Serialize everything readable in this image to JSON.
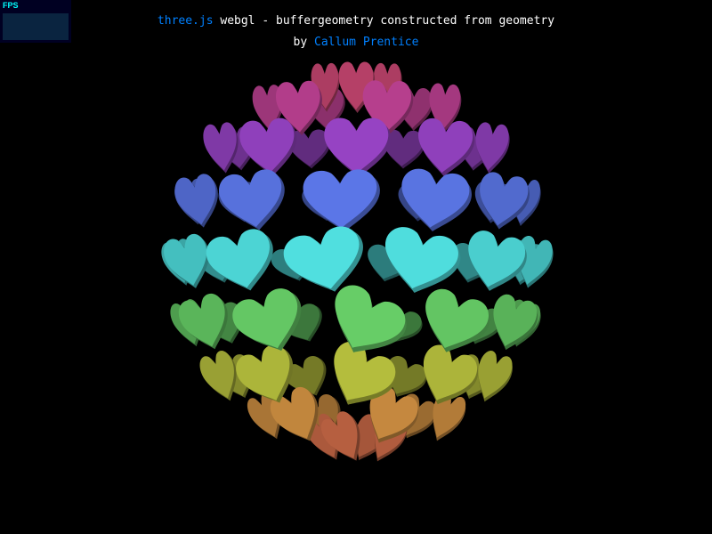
{
  "info": {
    "link_label": "three.js",
    "description": " webgl - buffergeometry constructed from geometry",
    "by_prefix": "by ",
    "author_label": "Callum Prentice"
  },
  "stats": {
    "mode_label": "FPS"
  },
  "colors": {
    "background": "#000000",
    "link": "#0080ff",
    "stats_bg": "#000022",
    "stats_text": "#00ffff"
  },
  "scene": {
    "shape": "heart-icon",
    "arrangement": "sphere of hearts, rainbow gradient top-to-bottom",
    "palette": [
      "#e0507a",
      "#c040c0",
      "#7050e0",
      "#5090f0",
      "#50e0e0",
      "#50d080",
      "#90d040",
      "#e0c040",
      "#e07050"
    ]
  }
}
